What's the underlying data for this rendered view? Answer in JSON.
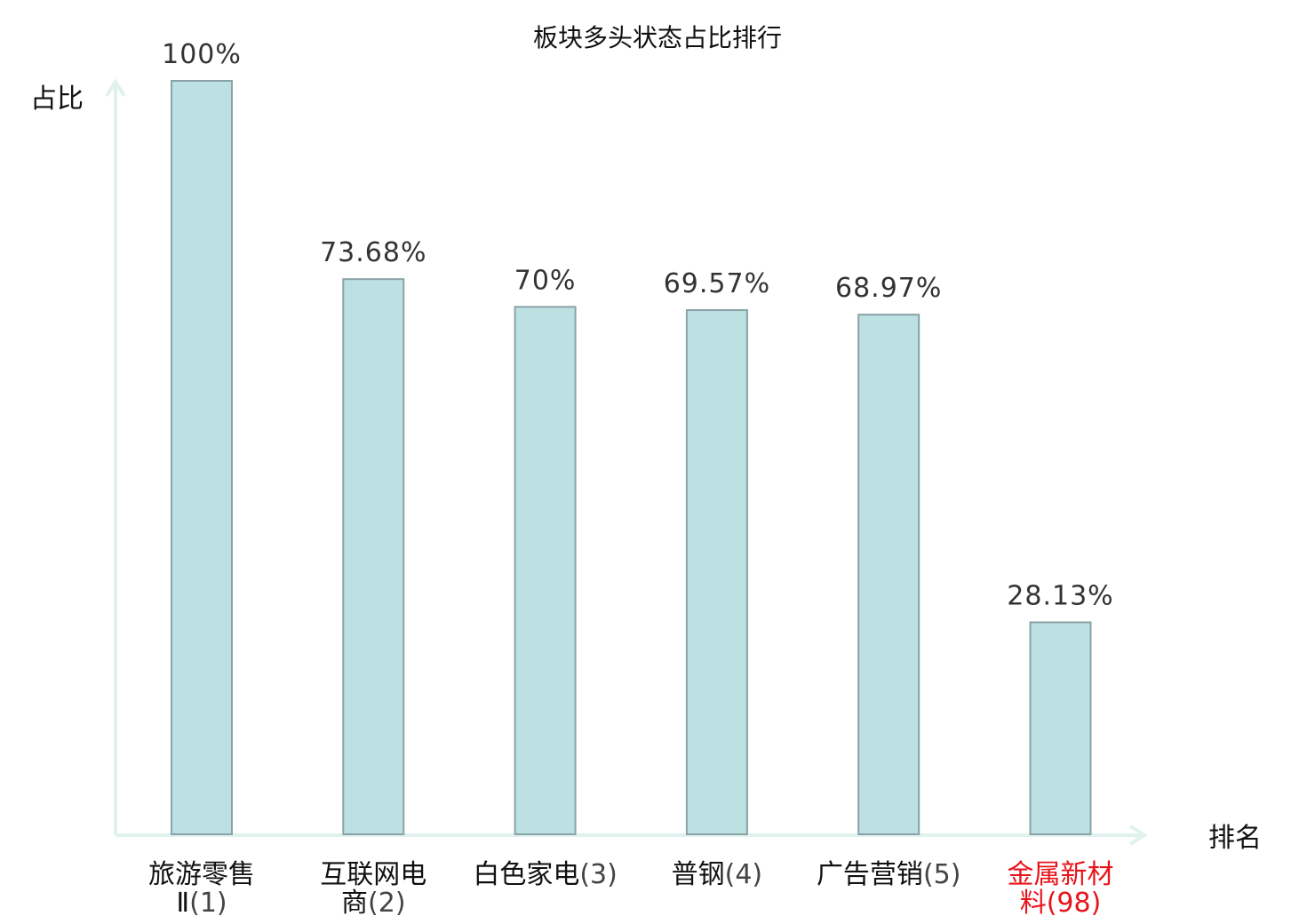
{
  "chart_data": {
    "type": "bar",
    "title": "板块多头状态占比排行",
    "ylabel": "占比",
    "xlabel": "排名",
    "ylim": [
      0,
      100
    ],
    "grid": false,
    "categories": [
      {
        "name_lines": [
          "旅游零售",
          "Ⅱ"
        ],
        "rank": "(1)",
        "highlight": false
      },
      {
        "name_lines": [
          "互联网电",
          "商"
        ],
        "rank": "(2)",
        "highlight": false
      },
      {
        "name_lines": [
          "白色家电"
        ],
        "rank": "(3)",
        "highlight": false
      },
      {
        "name_lines": [
          "普钢"
        ],
        "rank": "(4)",
        "highlight": false
      },
      {
        "name_lines": [
          "广告营销"
        ],
        "rank": "(5)",
        "highlight": false
      },
      {
        "name_lines": [
          "金属新材",
          "料"
        ],
        "rank": "(98)",
        "highlight": true
      }
    ],
    "values": [
      100,
      73.68,
      70,
      69.57,
      68.97,
      28.13
    ],
    "value_labels": [
      "100%",
      "73.68%",
      "70%",
      "69.57%",
      "68.97%",
      "28.13%"
    ],
    "colors": {
      "bar_fill": "#bde0e3",
      "bar_stroke": "#8aa3a6",
      "axis": "#dff2ee",
      "highlight_text": "#e8141b",
      "rank_text": "#444444"
    }
  }
}
